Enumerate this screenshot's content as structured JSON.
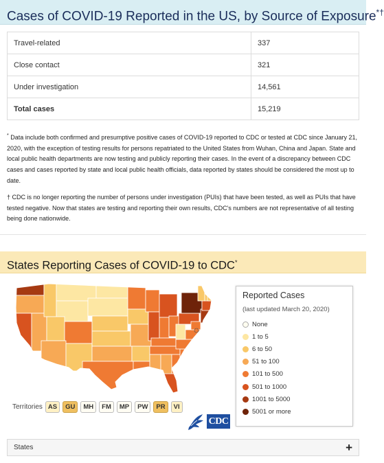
{
  "exposure": {
    "title": "Cases of COVID-19 Reported in the US, by Source of Exposure",
    "title_mark": "*†",
    "rows": [
      {
        "label": "Travel-related",
        "value": "337"
      },
      {
        "label": "Close contact",
        "value": "321"
      },
      {
        "label": "Under investigation",
        "value": "14,561"
      }
    ],
    "total": {
      "label": "Total cases",
      "value": "15,219"
    }
  },
  "notes": {
    "note1_mark": "*",
    "note1": "Data include both confirmed and presumptive positive cases of COVID-19 reported to CDC or tested at CDC since January 21, 2020, with the exception of testing results for persons repatriated to the United States from Wuhan, China and Japan. State and local public health departments are now testing and publicly reporting their cases. In the event of a discrepancy between CDC cases and cases reported by state and local public health officials, data reported by states should be considered the most up to date.",
    "note2_mark": "†",
    "note2": "CDC is no longer reporting the number of persons under investigation (PUIs) that have been tested, as well as PUIs that have tested negative. Now that states are testing and reporting their own results, CDC's numbers are not representative of all testing being done nationwide."
  },
  "states_section": {
    "title": "States Reporting Cases of COVID-19 to CDC",
    "title_mark": "*"
  },
  "legend": {
    "title": "Reported Cases",
    "subtitle": "(last updated March 20, 2020)",
    "items": [
      {
        "label": "None",
        "color": "#fffdf0"
      },
      {
        "label": "1 to 5",
        "color": "#fde7a3"
      },
      {
        "label": "6 to 50",
        "color": "#f9c868"
      },
      {
        "label": "51 to 100",
        "color": "#f7a955"
      },
      {
        "label": "101 to 500",
        "color": "#ef7a33"
      },
      {
        "label": "501 to 1000",
        "color": "#d8531f"
      },
      {
        "label": "1001 to 5000",
        "color": "#a63a12"
      },
      {
        "label": "5001 or more",
        "color": "#6e2309"
      }
    ]
  },
  "territories": {
    "label": "Territories",
    "items": [
      {
        "code": "AS",
        "level": "pale"
      },
      {
        "code": "GU",
        "level": "gold"
      },
      {
        "code": "MH",
        "level": "none"
      },
      {
        "code": "FM",
        "level": "none"
      },
      {
        "code": "MP",
        "level": "none"
      },
      {
        "code": "PW",
        "level": "none"
      },
      {
        "code": "PR",
        "level": "gold"
      },
      {
        "code": "VI",
        "level": "pale"
      }
    ]
  },
  "logos": {
    "cdc": "CDC"
  },
  "states_accordion": {
    "label": "States",
    "toggle": "+"
  }
}
